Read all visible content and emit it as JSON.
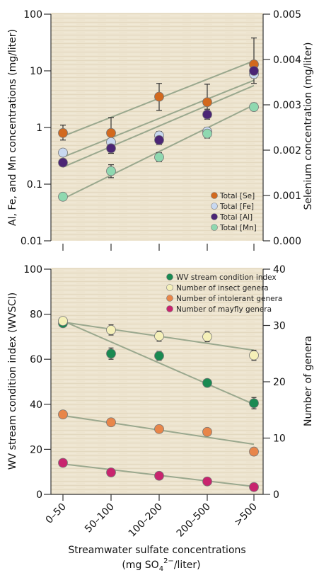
{
  "chart_data": [
    {
      "type": "scatter",
      "panel": "top",
      "categories": [
        "0–50",
        "50–100",
        "100–200",
        "200–500",
        ">500"
      ],
      "ylabel_left": "Al, Fe, and Mn concentrations (mg/liter)",
      "ylabel_right": "Selenium concentration (mg/liter)",
      "yscale_left": "log",
      "ylim_left": [
        0.01,
        100
      ],
      "yticks_left": [
        "0.01",
        "0.1",
        "1",
        "10",
        "100"
      ],
      "ylim_right": [
        0,
        0.005
      ],
      "yticks_right": [
        "0.000",
        "0.001",
        "0.002",
        "0.003",
        "0.004",
        "0.005"
      ],
      "legend_position": "bottom-right",
      "series": [
        {
          "name": "Total [Se]",
          "axis": "left",
          "color": "#d2691e",
          "values": [
            0.8,
            0.8,
            3.5,
            2.8,
            13
          ],
          "err_low": [
            0.6,
            0.6,
            2.0,
            1.8,
            6.0
          ],
          "err_high": [
            1.1,
            1.5,
            6.0,
            5.8,
            38
          ],
          "fit": [
            0.7,
            15
          ]
        },
        {
          "name": "Total [Fe]",
          "axis": "left",
          "color": "#c8d8f0",
          "values": [
            0.36,
            0.55,
            0.72,
            0.85,
            8.8
          ],
          "err_low": [
            0.33,
            0.5,
            0.6,
            0.7,
            7.5
          ],
          "err_high": [
            0.39,
            0.6,
            0.85,
            1.0,
            10
          ],
          "fit": [
            0.3,
            6.8
          ]
        },
        {
          "name": "Total [Al]",
          "axis": "left",
          "color": "#4b2575",
          "values": [
            0.24,
            0.43,
            0.6,
            1.7,
            10
          ],
          "err_low": [
            0.22,
            0.35,
            0.5,
            1.4,
            8.5
          ],
          "err_high": [
            0.26,
            0.52,
            0.72,
            2.1,
            12
          ],
          "fit": [
            0.2,
            5.5
          ]
        },
        {
          "name": "Total [Mn]",
          "axis": "left",
          "color": "#8fd8b0",
          "values": [
            0.06,
            0.17,
            0.3,
            0.78,
            2.3
          ],
          "err_low": [
            0.055,
            0.13,
            0.25,
            0.65,
            2.0
          ],
          "err_high": [
            0.065,
            0.22,
            0.36,
            0.92,
            2.7
          ],
          "fit": [
            0.055,
            2.5
          ]
        }
      ]
    },
    {
      "type": "scatter",
      "panel": "bottom",
      "categories": [
        "0–50",
        "50–100",
        "100–200",
        "200–500",
        ">500"
      ],
      "xlabel_line1": "Streamwater sulfate concentrations",
      "xlabel_line2_prefix": "(mg SO",
      "xlabel_sub": "4",
      "xlabel_sup": "2−",
      "xlabel_line2_suffix": "/liter)",
      "ylabel_left": "WV stream condition index (WVSCI)",
      "ylabel_right": "Number of genera",
      "ylim_left": [
        0,
        100
      ],
      "yticks_left": [
        "0",
        "20",
        "40",
        "60",
        "80",
        "100"
      ],
      "ylim_right": [
        0,
        40
      ],
      "yticks_right": [
        "0",
        "10",
        "20",
        "30",
        "40"
      ],
      "legend_position": "top-right",
      "series": [
        {
          "name": "WV stream condition index",
          "axis": "left",
          "color": "#1a8a52",
          "values": [
            76,
            62.5,
            61.5,
            49.5,
            40.5
          ],
          "err": [
            1.5,
            2.5,
            2.0,
            1.0,
            2.5
          ],
          "fit": [
            77,
            40
          ]
        },
        {
          "name": "Number of insect genera",
          "axis": "right",
          "color": "#f5f0b8",
          "values": [
            30.8,
            29.2,
            28.1,
            28.0,
            24.7
          ],
          "err": [
            0.6,
            0.9,
            0.9,
            0.9,
            0.9
          ],
          "fit": [
            30.6,
            25.6
          ]
        },
        {
          "name": "Number of intolerant genera",
          "axis": "right",
          "color": "#e8864a",
          "values": [
            14.2,
            12.8,
            11.6,
            11.1,
            7.6
          ],
          "err": [
            0.3,
            0.5,
            0.6,
            0.3,
            0.3
          ],
          "fit": [
            14.0,
            8.9
          ]
        },
        {
          "name": "Number of mayfly genera",
          "axis": "right",
          "color": "#c8246e",
          "values": [
            5.6,
            3.9,
            3.3,
            2.3,
            1.3
          ],
          "err": [
            0.2,
            0.2,
            0.2,
            0.2,
            0.2
          ],
          "fit": [
            5.4,
            1.4
          ]
        }
      ]
    }
  ]
}
